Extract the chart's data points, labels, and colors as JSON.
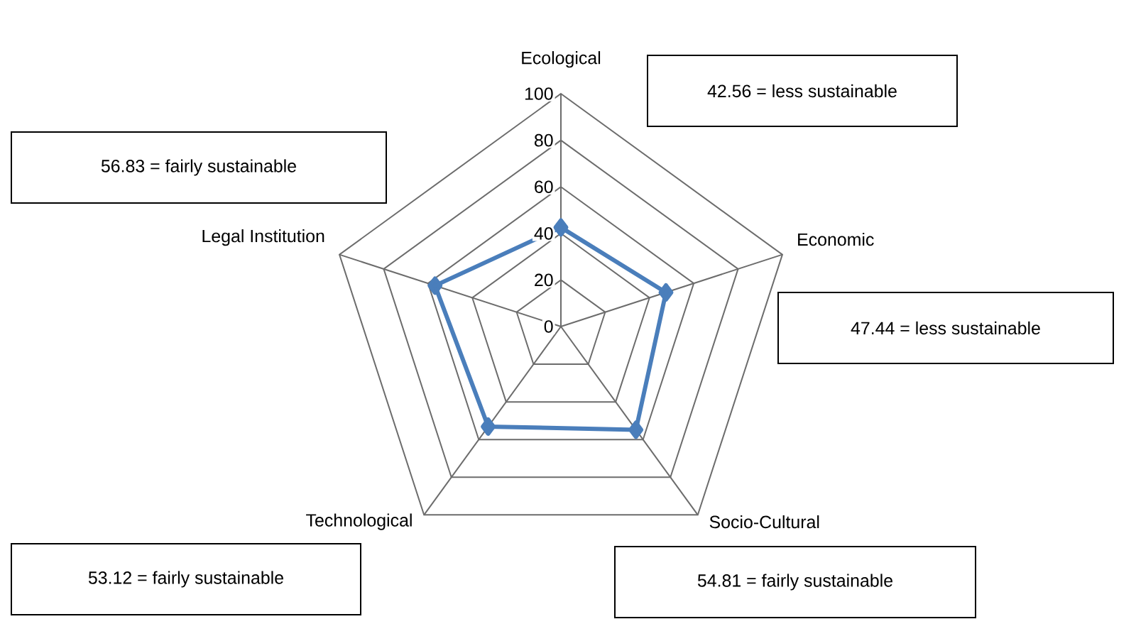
{
  "chart_data": {
    "type": "radar",
    "categories": [
      "Ecological",
      "Economic",
      "Socio-Cultural",
      "Technological",
      "Legal Institution"
    ],
    "series": [
      {
        "color": "#4a7ebb",
        "values": [
          42.56,
          47.44,
          54.81,
          53.12,
          56.83
        ]
      }
    ],
    "ylim": [
      0,
      100
    ],
    "yticks": [
      0,
      20,
      40,
      60,
      80,
      100
    ],
    "grid": true,
    "marker": "diamond",
    "line_style": "solid",
    "annotations": [
      "42.56 = less sustainable",
      "47.44 = less sustainable",
      "54.81 = fairly sustainable",
      "53.12 = fairly sustainable",
      "56.83 = fairly sustainable"
    ]
  }
}
